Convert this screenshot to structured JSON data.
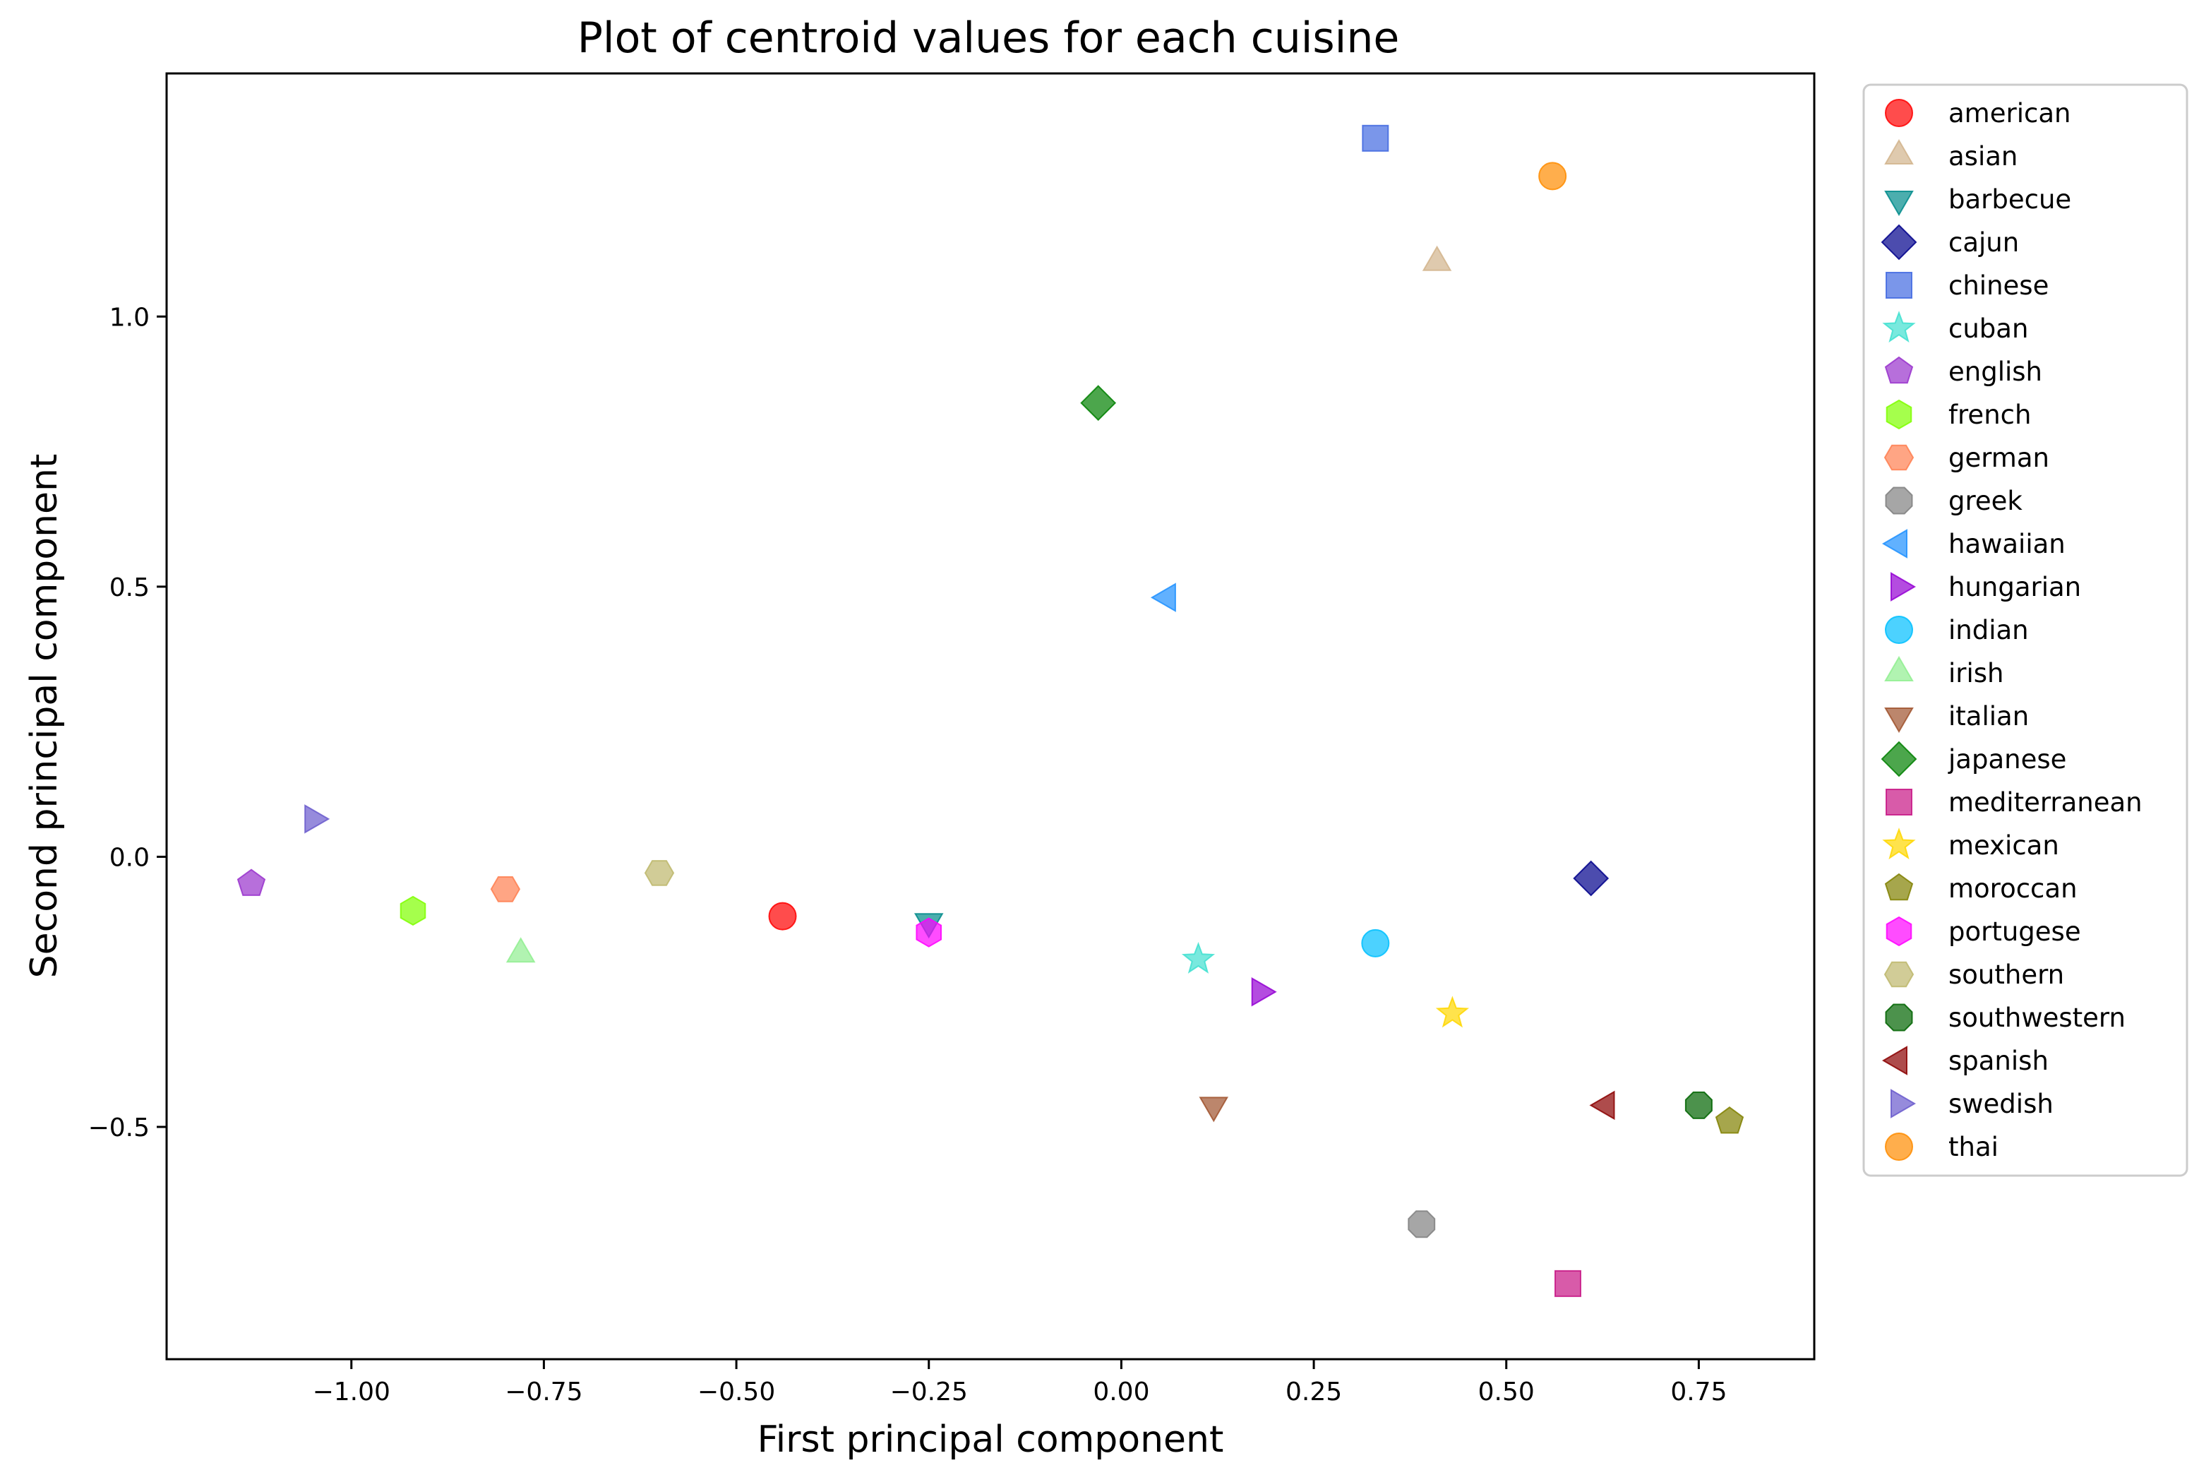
{
  "chart_data": {
    "type": "scatter",
    "title": "Plot of centroid values for each cuisine",
    "xlabel": "First principal component",
    "ylabel": "Second principal component",
    "xlim": [
      -1.24,
      0.9
    ],
    "ylim": [
      -0.93,
      1.45
    ],
    "x_ticks": [
      -1.0,
      -0.75,
      -0.5,
      -0.25,
      0.0,
      0.25,
      0.5,
      0.75
    ],
    "x_tick_labels": [
      "−1.00",
      "−0.75",
      "−0.50",
      "−0.25",
      "0.00",
      "0.25",
      "0.50",
      "0.75"
    ],
    "y_ticks": [
      -0.5,
      0.0,
      0.5,
      1.0
    ],
    "y_tick_labels": [
      "−0.5",
      "0.0",
      "0.5",
      "1.0"
    ],
    "grid": false,
    "legend_position": "outside-right",
    "series": [
      {
        "name": "american",
        "x": -0.44,
        "y": -0.11,
        "marker": "circle",
        "color": "#ff0000"
      },
      {
        "name": "asian",
        "x": 0.41,
        "y": 1.1,
        "marker": "triangle-up",
        "color": "#d2b48c"
      },
      {
        "name": "barbecue",
        "x": -0.25,
        "y": -0.12,
        "marker": "triangle-down",
        "color": "#008b8b"
      },
      {
        "name": "cajun",
        "x": 0.61,
        "y": -0.04,
        "marker": "diamond",
        "color": "#00008b"
      },
      {
        "name": "chinese",
        "x": 0.33,
        "y": 1.33,
        "marker": "square",
        "color": "#4169e1"
      },
      {
        "name": "cuban",
        "x": 0.1,
        "y": -0.19,
        "marker": "star",
        "color": "#40e0d0"
      },
      {
        "name": "english",
        "x": -1.13,
        "y": -0.05,
        "marker": "pentagon",
        "color": "#9932cc"
      },
      {
        "name": "french",
        "x": -0.92,
        "y": -0.1,
        "marker": "hexagon",
        "color": "#7fff00"
      },
      {
        "name": "german",
        "x": -0.8,
        "y": -0.06,
        "marker": "hexagon-flat",
        "color": "#ff7f50"
      },
      {
        "name": "greek",
        "x": 0.39,
        "y": -0.68,
        "marker": "octagon",
        "color": "#808080"
      },
      {
        "name": "hawaiian",
        "x": 0.06,
        "y": 0.48,
        "marker": "triangle-left",
        "color": "#1e90ff"
      },
      {
        "name": "hungarian",
        "x": 0.18,
        "y": -0.25,
        "marker": "triangle-right",
        "color": "#9400d3"
      },
      {
        "name": "indian",
        "x": 0.33,
        "y": -0.16,
        "marker": "circle",
        "color": "#00bfff"
      },
      {
        "name": "irish",
        "x": -0.78,
        "y": -0.18,
        "marker": "triangle-up",
        "color": "#90ee90"
      },
      {
        "name": "italian",
        "x": 0.12,
        "y": -0.46,
        "marker": "triangle-down",
        "color": "#a0522d"
      },
      {
        "name": "japanese",
        "x": -0.03,
        "y": 0.84,
        "marker": "diamond",
        "color": "#008000"
      },
      {
        "name": "mediterranean",
        "x": 0.58,
        "y": -0.79,
        "marker": "square",
        "color": "#c71585"
      },
      {
        "name": "mexican",
        "x": 0.43,
        "y": -0.29,
        "marker": "star",
        "color": "#ffd700"
      },
      {
        "name": "moroccan",
        "x": 0.79,
        "y": -0.49,
        "marker": "pentagon",
        "color": "#808000"
      },
      {
        "name": "portugese",
        "x": -0.25,
        "y": -0.14,
        "marker": "hexagon",
        "color": "#ff00ff"
      },
      {
        "name": "southern",
        "x": -0.6,
        "y": -0.03,
        "marker": "hexagon-flat",
        "color": "#bdb76b"
      },
      {
        "name": "southwestern",
        "x": 0.75,
        "y": -0.46,
        "marker": "octagon",
        "color": "#006400"
      },
      {
        "name": "spanish",
        "x": 0.63,
        "y": -0.46,
        "marker": "triangle-left",
        "color": "#8b0000"
      },
      {
        "name": "swedish",
        "x": -1.05,
        "y": 0.07,
        "marker": "triangle-right",
        "color": "#6a5acd"
      },
      {
        "name": "thai",
        "x": 0.56,
        "y": 1.26,
        "marker": "circle",
        "color": "#ff8c00"
      }
    ]
  }
}
